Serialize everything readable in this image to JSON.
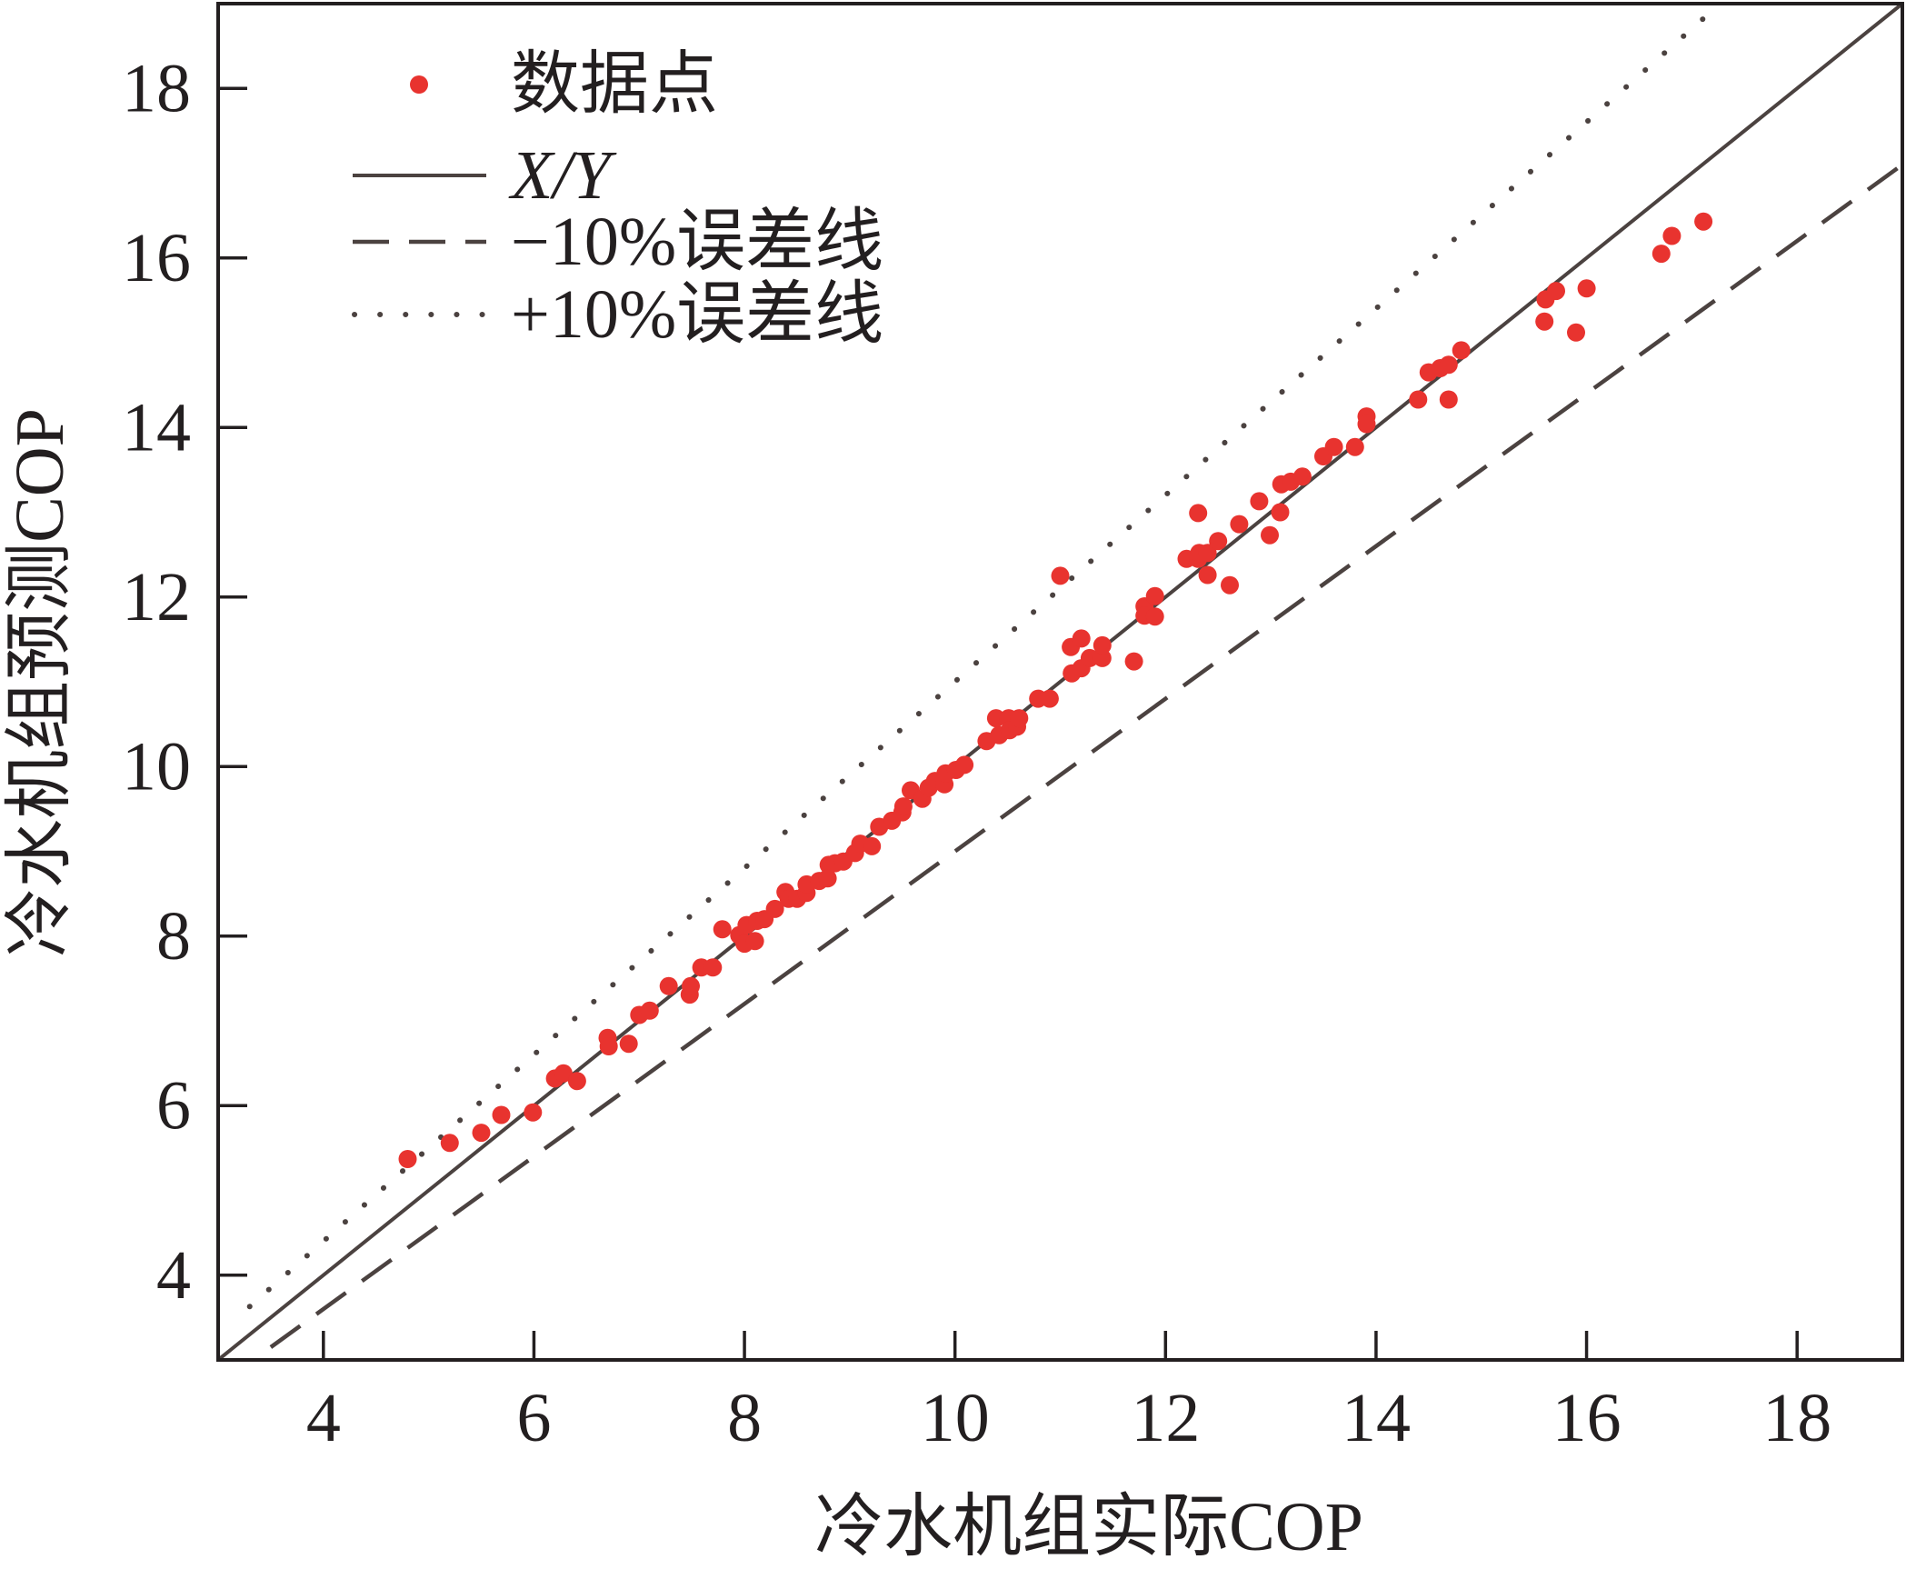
{
  "chart_data": {
    "type": "scatter",
    "xlabel": "冷水机组实际COP",
    "ylabel": "冷水机组预测COP",
    "xlim": [
      3,
      19
    ],
    "ylim": [
      3,
      19
    ],
    "xticks": [
      4,
      6,
      8,
      10,
      12,
      14,
      16,
      18
    ],
    "yticks": [
      4,
      6,
      8,
      10,
      12,
      14,
      16,
      18
    ],
    "grid": false,
    "legend_position": "top-left",
    "series": [
      {
        "name": "数据点",
        "type": "scatter",
        "color": "#e8332f",
        "x": [
          4.8,
          5.2,
          5.5,
          5.69,
          5.99,
          6.2,
          6.28,
          6.41,
          6.7,
          6.71,
          6.9,
          7.0,
          7.1,
          7.28,
          7.48,
          7.49,
          7.59,
          7.7,
          7.79,
          7.95,
          8.0,
          8.02,
          8.1,
          8.12,
          8.19,
          8.29,
          8.39,
          8.42,
          8.5,
          8.59,
          8.59,
          8.71,
          8.8,
          8.79,
          8.86,
          8.94,
          9.05,
          9.1,
          9.21,
          9.28,
          9.4,
          9.5,
          9.51,
          9.58,
          9.69,
          9.75,
          9.81,
          9.9,
          9.91,
          10.01,
          10.09,
          10.3,
          10.42,
          10.39,
          10.51,
          10.52,
          10.59,
          10.61,
          10.79,
          10.9,
          11.0,
          11.1,
          11.11,
          11.2,
          11.2,
          11.28,
          11.4,
          11.4,
          11.7,
          11.8,
          11.8,
          11.9,
          11.9,
          12.2,
          12.31,
          12.31,
          12.32,
          12.4,
          12.4,
          12.5,
          12.61,
          12.7,
          12.89,
          12.99,
          13.09,
          13.1,
          13.19,
          13.3,
          13.5,
          13.6,
          13.8,
          13.91,
          13.91,
          14.4,
          14.5,
          14.61,
          14.69,
          14.69,
          14.81,
          15.6,
          15.61,
          15.71,
          15.9,
          16.0,
          16.71,
          16.81,
          17.11
        ],
        "y": [
          5.37,
          5.56,
          5.68,
          5.89,
          5.92,
          6.32,
          6.38,
          6.29,
          6.8,
          6.7,
          6.73,
          7.07,
          7.12,
          7.41,
          7.31,
          7.41,
          7.63,
          7.63,
          8.08,
          8.01,
          7.91,
          8.13,
          7.94,
          8.18,
          8.2,
          8.32,
          8.52,
          8.44,
          8.44,
          8.51,
          8.61,
          8.65,
          8.84,
          8.68,
          8.86,
          8.88,
          8.98,
          9.09,
          9.06,
          9.29,
          9.36,
          9.46,
          9.53,
          9.72,
          9.62,
          9.75,
          9.83,
          9.79,
          9.92,
          9.96,
          10.02,
          10.3,
          10.37,
          10.57,
          10.57,
          10.43,
          10.47,
          10.57,
          10.8,
          10.8,
          12.25,
          11.41,
          11.1,
          11.51,
          11.16,
          11.28,
          11.28,
          11.43,
          11.24,
          11.89,
          11.78,
          11.77,
          12.01,
          12.45,
          12.99,
          12.45,
          12.52,
          12.52,
          12.26,
          12.66,
          12.14,
          12.86,
          13.13,
          12.73,
          13.0,
          13.33,
          13.36,
          13.42,
          13.66,
          13.77,
          13.77,
          14.13,
          14.04,
          14.33,
          14.65,
          14.7,
          14.74,
          14.33,
          14.91,
          15.25,
          15.51,
          15.61,
          15.12,
          15.64,
          16.05,
          16.26,
          16.43
        ]
      },
      {
        "name": "X/Y",
        "type": "line",
        "style": "solid",
        "color": "#4b4240",
        "x": [
          3,
          19
        ],
        "y": [
          3,
          19
        ]
      },
      {
        "name": "−10%误差线",
        "type": "line",
        "style": "dashed",
        "color": "#4b4240",
        "x": [
          3.5,
          19
        ],
        "y": [
          3.15,
          17.1
        ]
      },
      {
        "name": "+10%误差线",
        "type": "line",
        "style": "dotted",
        "color": "#4b4240",
        "x": [
          3.3,
          17.27
        ],
        "y": [
          3.63,
          19
        ]
      }
    ]
  }
}
